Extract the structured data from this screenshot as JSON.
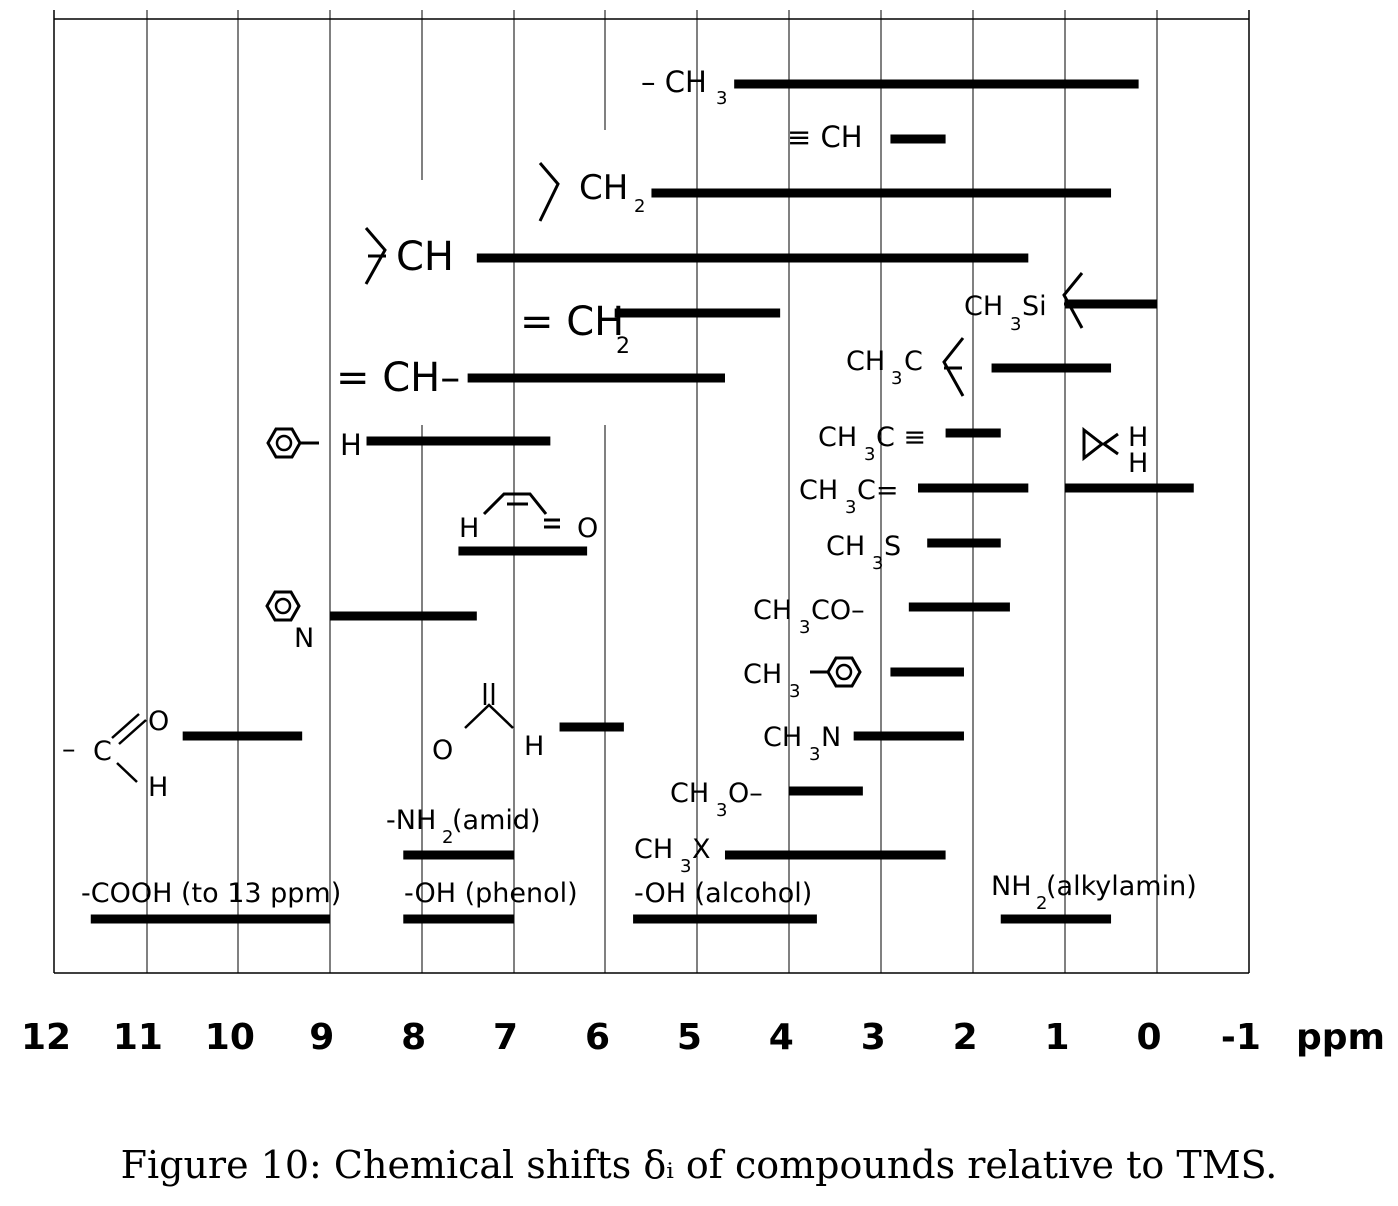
{
  "chart_data": {
    "type": "range-bar",
    "x_unit": "ppm",
    "xlim": [
      12,
      -1
    ],
    "x_ticks": [
      "12",
      "11",
      "10",
      "9",
      "8",
      "7",
      "6",
      "5",
      "4",
      "3",
      "2",
      "1",
      "0",
      "-1"
    ],
    "grid": "vertical lines at integer ppm",
    "bars": [
      {
        "label": "– CH",
        "sub": "3",
        "range": [
          4.6,
          0.2
        ]
      },
      {
        "label": "≡ CH",
        "sub": "",
        "range": [
          2.9,
          2.3
        ]
      },
      {
        "label": "CH",
        "sub": "2",
        "range": [
          5.5,
          0.5
        ]
      },
      {
        "label": "CH",
        "sub": "",
        "range": [
          7.4,
          1.4
        ]
      },
      {
        "label": "CH₃Si",
        "range": [
          1.0,
          0.0
        ]
      },
      {
        "label": "= CH",
        "sub": "2",
        "range": [
          5.9,
          4.1
        ]
      },
      {
        "label": "CH₃C",
        "range": [
          1.8,
          0.5
        ]
      },
      {
        "label": "= CH–",
        "range": [
          7.5,
          4.7
        ]
      },
      {
        "label": "H",
        "range": [
          8.6,
          6.6
        ]
      },
      {
        "label": "CH₃C ≡",
        "range": [
          2.3,
          1.7
        ]
      },
      {
        "label": "H H",
        "range": [
          1.0,
          -0.4
        ]
      },
      {
        "label": "CH₃C=",
        "range": [
          2.6,
          1.4
        ]
      },
      {
        "label": "H O",
        "range": [
          7.6,
          6.2
        ]
      },
      {
        "label": "CH₃S",
        "range": [
          2.5,
          1.7
        ]
      },
      {
        "label": "N",
        "range": [
          9.0,
          7.4
        ]
      },
      {
        "label": "CH₃CO–",
        "range": [
          2.7,
          1.6
        ]
      },
      {
        "label": "CH₃",
        "range": [
          2.9,
          2.1
        ]
      },
      {
        "label": "C O H",
        "range": [
          10.6,
          9.3
        ]
      },
      {
        "label": "O H",
        "range": [
          6.5,
          5.8
        ]
      },
      {
        "label": "CH₃N",
        "range": [
          3.3,
          2.1
        ]
      },
      {
        "label": "CH₃O–",
        "range": [
          4.0,
          3.2
        ]
      },
      {
        "label": "-NH₂ (amid)",
        "range": [
          8.2,
          7.0
        ]
      },
      {
        "label": "CH₃X",
        "range": [
          4.7,
          2.3
        ]
      },
      {
        "label": "-COOH (to 13 ppm)",
        "range": [
          11.6,
          9.0
        ]
      },
      {
        "label": "-OH (phenol)",
        "range": [
          8.2,
          7.0
        ]
      },
      {
        "label": "-OH (alcohol)",
        "range": [
          5.7,
          3.7
        ]
      },
      {
        "label": "NH₂ (alkylamin)",
        "range": [
          1.7,
          0.5
        ]
      }
    ]
  },
  "texts": {
    "methyl": "– CH",
    "methyl_sub": "3",
    "alkyne_ch": "≡ CH",
    "ch2": "CH",
    "ch2_sub": "2",
    "ch": "CH",
    "ch3si": "CH",
    "ch3si_sub": "3",
    "ch3si_tail": "Si",
    "vinylidene": "= CH",
    "vinylidene_sub": "2",
    "ch3c": "CH",
    "ch3c_sub": "3",
    "ch3c_tail": "C",
    "vinyl_ch": "= CH–",
    "aryl_h": "H",
    "ch3c_alkyne": "CH",
    "ch3c_alkyne_sub": "3",
    "ch3c_alkyne_tail": "C ≡",
    "cyclopropane_h1": "H",
    "cyclopropane_h2": "H",
    "ch3c_alkene": "CH",
    "ch3c_alkene_sub": "3",
    "ch3c_alkene_tail": "C=",
    "enal_h": "H",
    "enal_o": "O",
    "ch3s": "CH",
    "ch3s_sub": "3",
    "ch3s_tail": "S",
    "pyridine_n": "N",
    "ch3co": "CH",
    "ch3co_sub": "3",
    "ch3co_tail": "CO–",
    "ch3ar": "CH",
    "ch3ar_sub": "3",
    "ald_dash": "–",
    "ald_c": "C",
    "ald_o": "O",
    "ald_h": "H",
    "formate_o": "O",
    "formate_h": "H",
    "ch3n": "CH",
    "ch3n_sub": "3",
    "ch3n_tail": "N",
    "ch3o": "CH",
    "ch3o_sub": "3",
    "ch3o_tail": "O–",
    "amide": "-NH",
    "amide_sub": "2",
    "amide_tail": " (amid)",
    "ch3x": "CH",
    "ch3x_sub": "3",
    "ch3x_tail": "X",
    "cooh": "-COOH (to 13 ppm)",
    "phenol": "-OH (phenol)",
    "alcohol": "-OH (alcohol)",
    "alkylamine": "NH",
    "alkylamine_sub": "2",
    "alkylamine_tail": " (alkylamin)",
    "axis_unit": "ppm",
    "caption": "Figure 10: Chemical shifts δᵢ of compounds relative to TMS."
  }
}
